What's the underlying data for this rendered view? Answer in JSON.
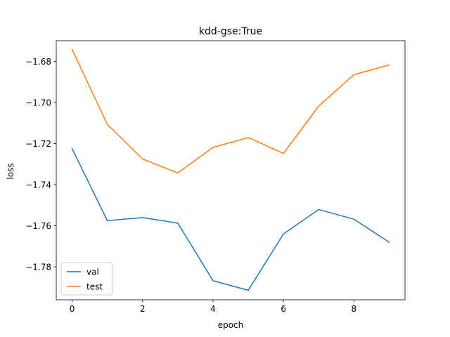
{
  "chart_data": {
    "type": "line",
    "title": "kdd-gse:True",
    "xlabel": "epoch",
    "ylabel": "loss",
    "x": [
      0,
      1,
      2,
      3,
      4,
      5,
      6,
      7,
      8,
      9
    ],
    "xlim": [
      -0.45,
      9.45
    ],
    "ylim": [
      -1.796,
      -1.67
    ],
    "xticks": [
      0,
      2,
      4,
      6,
      8
    ],
    "xtick_labels": [
      "0",
      "2",
      "4",
      "6",
      "8"
    ],
    "yticks": [
      -1.78,
      -1.76,
      -1.74,
      -1.72,
      -1.7,
      -1.68
    ],
    "ytick_labels": [
      "−1.78",
      "−1.76",
      "−1.74",
      "−1.72",
      "−1.70",
      "−1.68"
    ],
    "grid": false,
    "legend_position": "lower-left",
    "series": [
      {
        "name": "val",
        "color": "#1f77b4",
        "values": [
          -1.7225,
          -1.7575,
          -1.756,
          -1.7587,
          -1.7867,
          -1.7914,
          -1.764,
          -1.7521,
          -1.7568,
          -1.768
        ]
      },
      {
        "name": "test",
        "color": "#ff7f0e",
        "values": [
          -1.6742,
          -1.7107,
          -1.7275,
          -1.7343,
          -1.7219,
          -1.7171,
          -1.7248,
          -1.7018,
          -1.6865,
          -1.6818
        ]
      }
    ]
  }
}
